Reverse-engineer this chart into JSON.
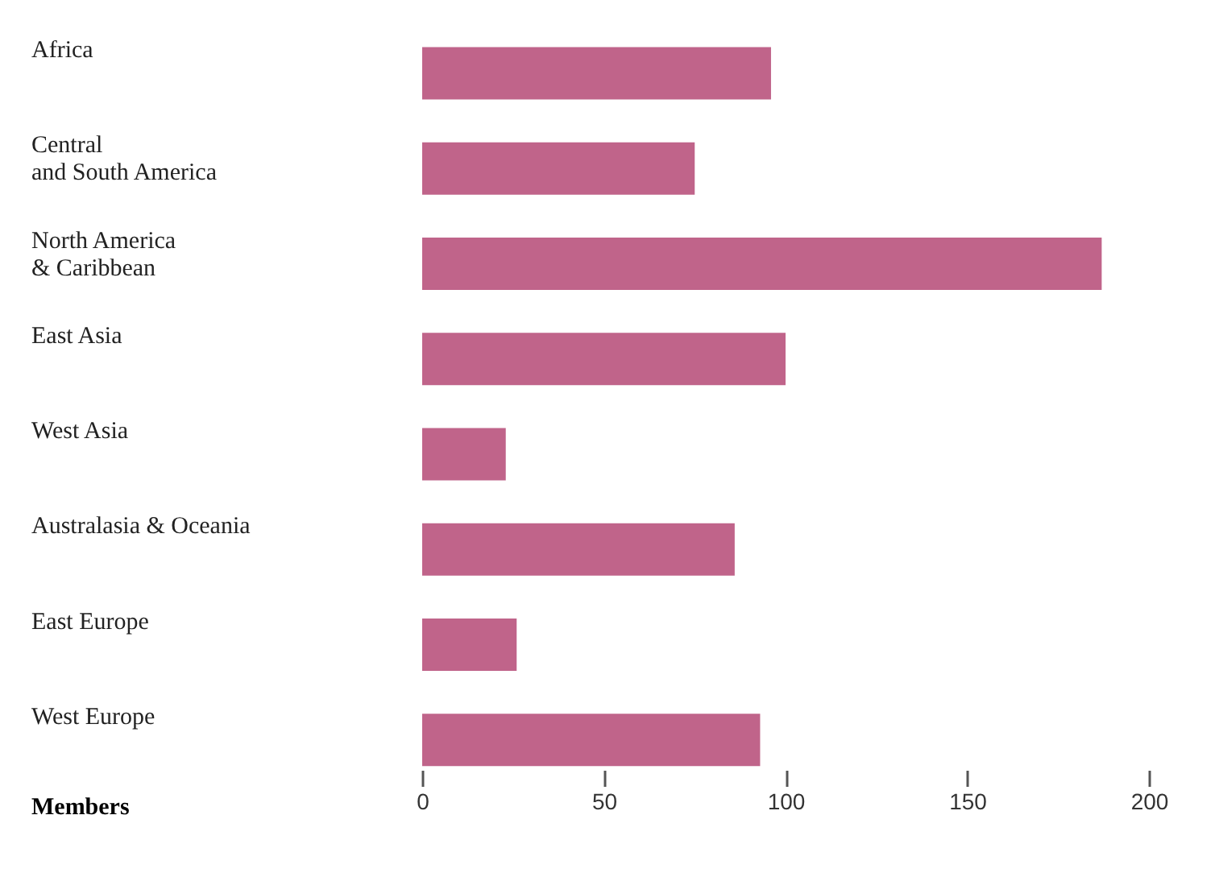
{
  "chart_data": {
    "type": "bar",
    "orientation": "horizontal",
    "xlabel": "Members",
    "categories": [
      "Africa",
      "Central\nand South America",
      "North America\n& Caribbean",
      "East Asia",
      "West Asia",
      "Australasia & Oceania",
      "East Europe",
      "West Europe"
    ],
    "values": [
      96,
      75,
      187,
      100,
      23,
      86,
      26,
      93
    ],
    "color": "#c0648a",
    "xlim": [
      0,
      200
    ],
    "xticks": [
      0,
      50,
      100,
      150,
      200
    ],
    "grid": false
  }
}
